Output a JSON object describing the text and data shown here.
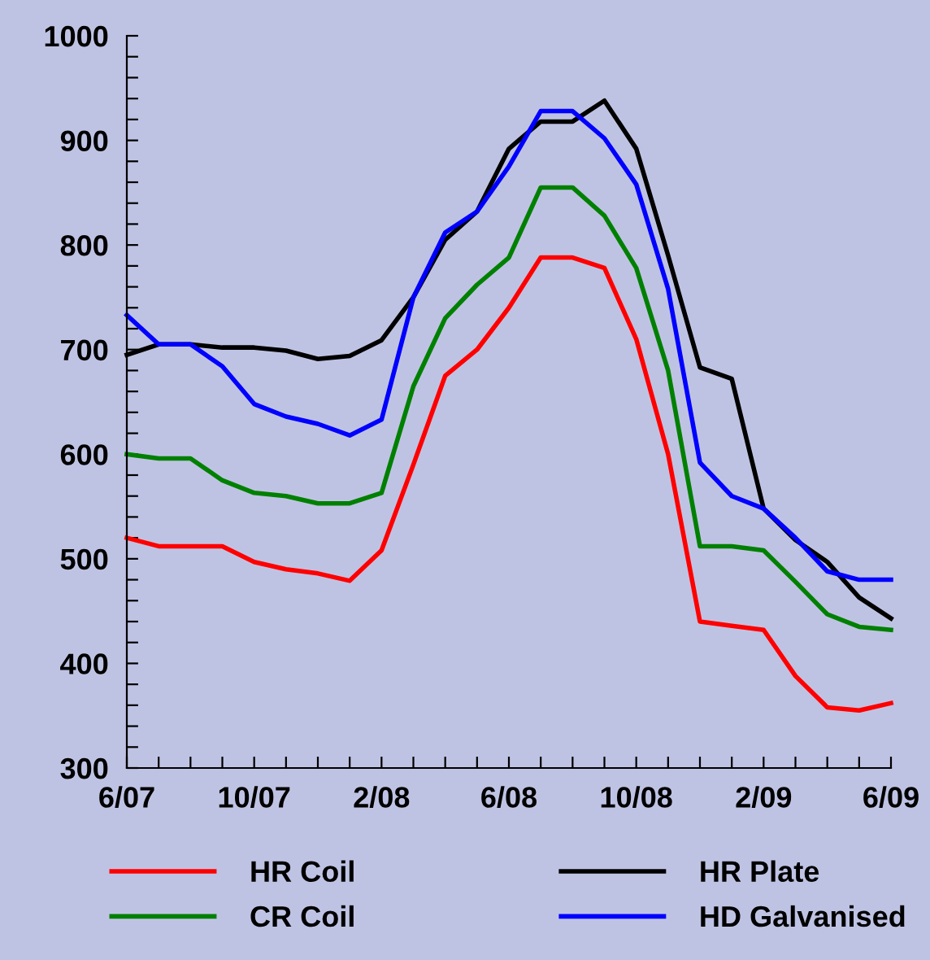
{
  "chart_data": {
    "type": "line",
    "categories": [
      "6/07",
      null,
      null,
      null,
      "10/07",
      null,
      null,
      null,
      "2/08",
      null,
      null,
      null,
      "6/08",
      null,
      null,
      null,
      "10/08",
      null,
      null,
      null,
      "2/09",
      null,
      null,
      null,
      "6/09"
    ],
    "series": [
      {
        "name": "HR Coil",
        "color": "#ff0000",
        "values": [
          520,
          512,
          512,
          512,
          497,
          490,
          486,
          479,
          508,
          590,
          675,
          700,
          740,
          788,
          788,
          778,
          710,
          600,
          440,
          436,
          432,
          388,
          358,
          355,
          362
        ]
      },
      {
        "name": "HR Plate",
        "color": "#000000",
        "values": [
          695,
          705,
          705,
          702,
          702,
          699,
          691,
          694,
          709,
          750,
          805,
          832,
          892,
          918,
          918,
          938,
          892,
          790,
          683,
          672,
          548,
          518,
          497,
          463,
          443
        ]
      },
      {
        "name": "CR Coil",
        "color": "#008000",
        "values": [
          600,
          596,
          596,
          575,
          563,
          560,
          553,
          553,
          563,
          665,
          730,
          762,
          788,
          855,
          855,
          828,
          778,
          680,
          512,
          512,
          508,
          478,
          447,
          435,
          432
        ]
      },
      {
        "name": "HD Galvanised",
        "color": "#0000ff",
        "values": [
          733,
          705,
          705,
          684,
          648,
          636,
          629,
          618,
          633,
          750,
          812,
          832,
          875,
          928,
          928,
          902,
          858,
          758,
          592,
          560,
          548,
          520,
          488,
          480,
          480
        ]
      }
    ],
    "ylim": [
      300,
      1000
    ],
    "yticks": [
      300,
      {
        "value": 320,
        "label": null
      },
      {
        "value": 340,
        "label": null
      },
      {
        "value": 360,
        "label": null
      },
      {
        "value": 380,
        "label": null
      },
      400,
      {
        "value": 420,
        "label": null
      },
      {
        "value": 440,
        "label": null
      },
      {
        "value": 460,
        "label": null
      },
      {
        "value": 480,
        "label": null
      },
      500,
      {
        "value": 520,
        "label": null
      },
      {
        "value": 540,
        "label": null
      },
      {
        "value": 560,
        "label": null
      },
      {
        "value": 580,
        "label": null
      },
      600,
      {
        "value": 620,
        "label": null
      },
      {
        "value": 640,
        "label": null
      },
      {
        "value": 660,
        "label": null
      },
      {
        "value": 680,
        "label": null
      },
      700,
      {
        "value": 720,
        "label": null
      },
      {
        "value": 740,
        "label": null
      },
      {
        "value": 760,
        "label": null
      },
      {
        "value": 780,
        "label": null
      },
      800,
      {
        "value": 820,
        "label": null
      },
      {
        "value": 840,
        "label": null
      },
      {
        "value": 860,
        "label": null
      },
      {
        "value": 880,
        "label": null
      },
      900,
      {
        "value": 920,
        "label": null
      },
      {
        "value": 940,
        "label": null
      },
      {
        "value": 960,
        "label": null
      },
      {
        "value": 980,
        "label": null
      },
      1000
    ],
    "grid": false,
    "legend": "bottom",
    "marker": "none",
    "line_style": "solid"
  }
}
